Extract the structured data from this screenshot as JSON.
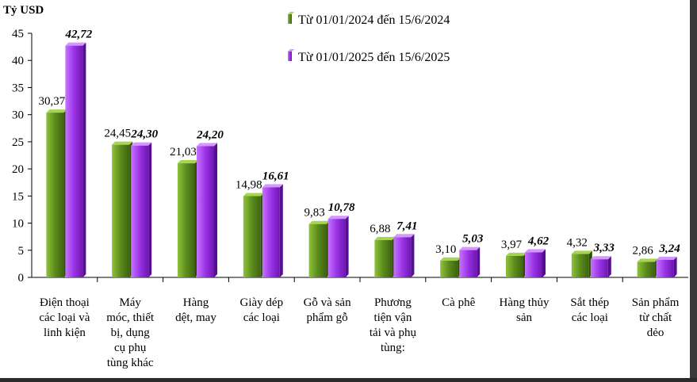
{
  "chart_data": {
    "type": "bar",
    "ylabel": "Tỷ USD",
    "ylim": [
      0,
      45
    ],
    "yticks": [
      "0",
      "5",
      "10",
      "15",
      "20",
      "25",
      "30",
      "35",
      "40",
      "45"
    ],
    "categories": [
      [
        "Điện thoại",
        "các loại và",
        "linh kiện"
      ],
      [
        "Máy",
        "móc, thiết",
        "bị, dụng",
        "cụ phụ",
        "tùng khác"
      ],
      [
        "Hàng",
        "dệt, may"
      ],
      [
        "Giày dép",
        "các loại"
      ],
      [
        "Gỗ và sản",
        "phẩm gỗ"
      ],
      [
        "Phương",
        "tiện vận",
        "tải và phụ",
        "tùng:"
      ],
      [
        "Cà phê"
      ],
      [
        "Hàng thủy",
        "sản"
      ],
      [
        "Sắt thép",
        "các loại"
      ],
      [
        "Sản phẩm",
        "từ chất",
        "dẻo"
      ]
    ],
    "series": [
      {
        "name": "Từ 01/01/2024 đến 15/6/2024",
        "color": "#5a8a1a",
        "values": [
          30.37,
          24.45,
          21.03,
          14.98,
          9.83,
          6.88,
          3.1,
          3.97,
          4.32,
          2.86
        ],
        "labels": [
          "30,37",
          "24,45",
          "21,03",
          "14,98",
          "9,83",
          "6,88",
          "3,10",
          "3,97",
          "4,32",
          "2,86"
        ]
      },
      {
        "name": "Từ 01/01/2025 đến 15/6/2025",
        "color": "#9b30e0",
        "values": [
          42.72,
          24.3,
          24.2,
          16.61,
          10.78,
          7.41,
          5.03,
          4.62,
          3.33,
          3.24
        ],
        "labels": [
          "42,72",
          "24,30",
          "24,20",
          "16,61",
          "10,78",
          "7,41",
          "5,03",
          "4,62",
          "3,33",
          "3,24"
        ]
      }
    ],
    "legend_position": "top-right",
    "grid": false
  }
}
